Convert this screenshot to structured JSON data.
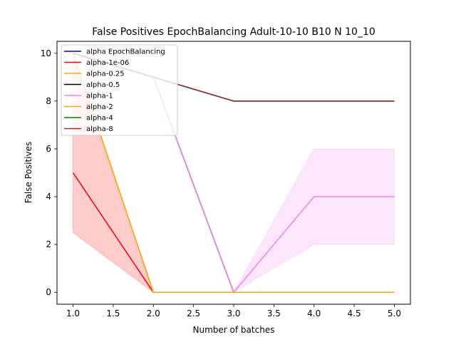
{
  "chart_data": {
    "type": "line",
    "title": "False Positives EpochBalancing Adult-10-10 B10 N 10_10",
    "xlabel": "Number of batches",
    "ylabel": "False Positives",
    "xlim": [
      0.8,
      5.2
    ],
    "ylim": [
      -0.5,
      10.5
    ],
    "x_ticks": [
      "1.0",
      "1.5",
      "2.0",
      "2.5",
      "3.0",
      "3.5",
      "4.0",
      "4.5",
      "5.0"
    ],
    "y_ticks": [
      "0",
      "2",
      "4",
      "6",
      "8",
      "10"
    ],
    "grid": false,
    "legend_position": "top-left",
    "x": [
      1,
      2,
      3,
      4,
      5
    ],
    "series": [
      {
        "name": "alpha EpochBalancing",
        "color": "#0000cc",
        "values": [
          10,
          9,
          8,
          8,
          8
        ]
      },
      {
        "name": "alpha-1e-06",
        "color": "#ff0000",
        "values": [
          5,
          0,
          0,
          0,
          0
        ],
        "band_low": [
          2.5,
          0,
          0,
          0,
          0
        ],
        "band_high": [
          10,
          0,
          0,
          0,
          0
        ],
        "band_color": "#ff0000"
      },
      {
        "name": "alpha-0.25",
        "color": "#ffa500",
        "values": [
          10,
          0,
          0,
          0,
          0
        ]
      },
      {
        "name": "alpha-0.5",
        "color": "#000000",
        "values": [
          10,
          9,
          0,
          0,
          0
        ]
      },
      {
        "name": "alpha-1",
        "color": "#ee82ee",
        "values": [
          10,
          9,
          0,
          4,
          4
        ],
        "band_low": [
          10,
          9,
          0,
          2,
          2
        ],
        "band_high": [
          10,
          9,
          0,
          6,
          6
        ],
        "band_color": "#ee82ee"
      },
      {
        "name": "alpha-2",
        "color": "#ffa500",
        "values": [
          10,
          0,
          0,
          0,
          0
        ]
      },
      {
        "name": "alpha-4",
        "color": "#008000",
        "values": [
          10,
          9,
          8,
          8,
          8
        ]
      },
      {
        "name": "alpha-8",
        "color": "#a52a2a",
        "values": [
          10,
          9,
          8,
          8,
          8
        ]
      }
    ]
  }
}
